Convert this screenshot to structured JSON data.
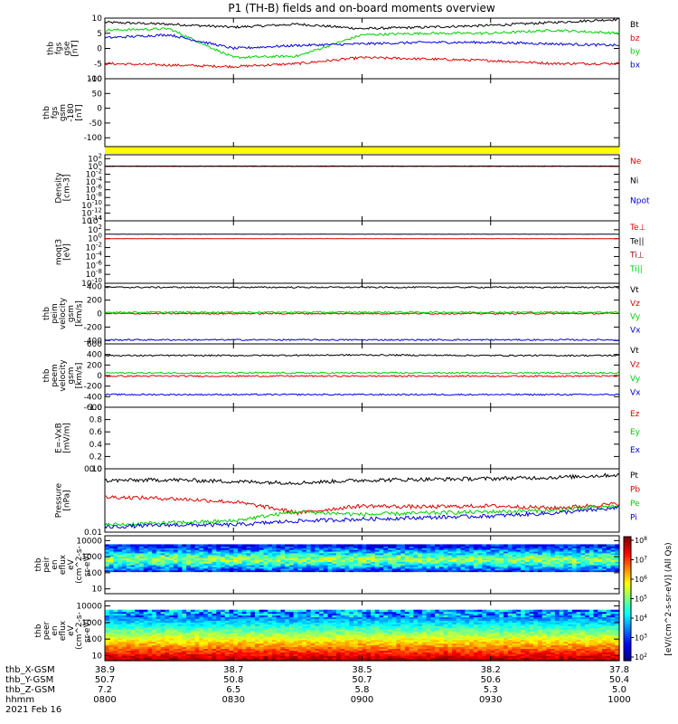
{
  "title": "P1 (TH-B) fields and on-board moments overview",
  "footer": {
    "date": "2021 Feb 16",
    "row_labels": [
      "thb_X-GSM",
      "thb_Y-GSM",
      "thb_Z-GSM",
      "hhmm"
    ],
    "columns": [
      {
        "x_gsm": "38.9",
        "y_gsm": "50.7",
        "z_gsm": "7.2",
        "hhmm": "0800"
      },
      {
        "x_gsm": "38.7",
        "y_gsm": "50.8",
        "z_gsm": "6.5",
        "hhmm": "0830"
      },
      {
        "x_gsm": "38.5",
        "y_gsm": "50.7",
        "z_gsm": "5.8",
        "hhmm": "0900"
      },
      {
        "x_gsm": "38.2",
        "y_gsm": "50.6",
        "z_gsm": "5.3",
        "hhmm": "0930"
      },
      {
        "x_gsm": "37.8",
        "y_gsm": "50.4",
        "z_gsm": "5.0",
        "hhmm": "1000"
      }
    ]
  },
  "colorbar": {
    "label": "[eV/(cm^2-s-sr-eV)] (All Qs)",
    "ticks": [
      "10^8",
      "10^7",
      "10^6",
      "10^5",
      "10^4",
      "10^3",
      "10^2"
    ]
  },
  "chart_data": [
    {
      "type": "line",
      "ylabel": [
        "thb",
        "fgs",
        "gse",
        "[nT]"
      ],
      "ylim": [
        -10,
        10
      ],
      "yticks": [
        "10",
        "5",
        "0",
        "-5",
        "-10"
      ],
      "series": [
        {
          "name": "Bt",
          "color": "#000000",
          "x": [
            0,
            15,
            30,
            45,
            60,
            75,
            90,
            105,
            120
          ],
          "values": [
            8.6,
            8.0,
            7.0,
            8.0,
            6.5,
            7.0,
            7.6,
            8.6,
            9.6
          ]
        },
        {
          "name": "bz",
          "color": "#e00000",
          "x": [
            0,
            15,
            30,
            45,
            60,
            75,
            90,
            105,
            120
          ],
          "values": [
            -5,
            -5.5,
            -6,
            -5,
            -3,
            -3.5,
            -4,
            -5,
            -5
          ]
        },
        {
          "name": "by",
          "color": "#00d000",
          "x": [
            0,
            15,
            30,
            45,
            60,
            75,
            90,
            105,
            120
          ],
          "values": [
            6,
            6.5,
            -3,
            -2.5,
            4.5,
            5,
            5,
            6,
            5
          ]
        },
        {
          "name": "bx",
          "color": "#0000e0",
          "x": [
            0,
            15,
            30,
            45,
            60,
            75,
            90,
            105,
            120
          ],
          "values": [
            3.5,
            4.5,
            0,
            1,
            1.5,
            2,
            2,
            1.5,
            1
          ]
        }
      ]
    },
    {
      "type": "line",
      "ylabel": [
        "thb",
        "fgs",
        "gsm",
        "-180",
        "[nT]"
      ],
      "ylim": [
        -130,
        100
      ],
      "yticks": [
        "100",
        "50",
        "0",
        "-50",
        "-100"
      ],
      "series": []
    },
    {
      "type": "line",
      "ylabel": [
        "Density",
        "[cm-3]"
      ],
      "yscale": "log",
      "ylim": [
        1e-14,
        1000
      ],
      "yticks": [
        "10^2",
        "10^0",
        "10^-2",
        "10^-4",
        "10^-6",
        "10^-8",
        "10^-10",
        "10^-12",
        "10^-14"
      ],
      "series": [
        {
          "name": "Ne",
          "color": "#e00000",
          "values": [
            1,
            1,
            1,
            1,
            1
          ]
        },
        {
          "name": "Ni",
          "color": "#000000",
          "values": [
            1.2,
            1.2,
            1.2,
            1.2,
            1.2
          ]
        },
        {
          "name": "Npot",
          "color": "#0000e0",
          "values": []
        }
      ]
    },
    {
      "type": "line",
      "ylabel": [
        "moqt3",
        "[eV]"
      ],
      "yscale": "log",
      "ylim": [
        1e-10,
        10000
      ],
      "yticks": [
        "10^4",
        "10^2",
        "10^0",
        "10^-2",
        "10^-4",
        "10^-6",
        "10^-8",
        "10^-10"
      ],
      "series": [
        {
          "name": "Te⊥",
          "color": "#e00000",
          "values": [
            1,
            1,
            1,
            1,
            1
          ]
        },
        {
          "name": "Te||",
          "color": "#000000",
          "values": [
            10,
            10,
            10,
            10,
            10
          ]
        },
        {
          "name": "Ti⊥",
          "color": "#a00000",
          "values": []
        },
        {
          "name": "Ti||",
          "color": "#00d000",
          "values": []
        }
      ]
    },
    {
      "type": "line",
      "ylabel": [
        "thb",
        "peim",
        "velocity",
        "gsm",
        "[km/s]"
      ],
      "ylim": [
        -450,
        450
      ],
      "yticks": [
        "400",
        "200",
        "0",
        "-200",
        "-400"
      ],
      "series": [
        {
          "name": "Vt",
          "color": "#000000",
          "values": [
            390,
            390,
            390,
            390,
            390
          ]
        },
        {
          "name": "Vz",
          "color": "#e00000",
          "values": [
            0,
            0,
            0,
            0,
            0
          ]
        },
        {
          "name": "Vy",
          "color": "#00d000",
          "values": [
            20,
            20,
            20,
            20,
            20
          ]
        },
        {
          "name": "Vx",
          "color": "#0000e0",
          "values": [
            -390,
            -390,
            -390,
            -390,
            -390
          ]
        }
      ]
    },
    {
      "type": "line",
      "ylabel": [
        "thb",
        "peem",
        "velocity",
        "gsm",
        "[km/s]"
      ],
      "ylim": [
        -600,
        600
      ],
      "yticks": [
        "600",
        "400",
        "200",
        "0",
        "-200",
        "-400",
        "-600"
      ],
      "series": [
        {
          "name": "Vt",
          "color": "#000000",
          "values": [
            380,
            380,
            390,
            380,
            380
          ]
        },
        {
          "name": "Vz",
          "color": "#e00000",
          "values": [
            -10,
            -10,
            -10,
            -10,
            -10
          ]
        },
        {
          "name": "Vy",
          "color": "#00d000",
          "values": [
            50,
            50,
            50,
            50,
            50
          ]
        },
        {
          "name": "Vx",
          "color": "#0000e0",
          "values": [
            -360,
            -360,
            -360,
            -360,
            -360
          ]
        }
      ]
    },
    {
      "type": "line",
      "ylabel": [
        "E=-VxB",
        "[mV/m]"
      ],
      "ylim": [
        0,
        1
      ],
      "yticks": [
        "1.0",
        "0.8",
        "0.6",
        "0.4",
        "0.2",
        "0.0"
      ],
      "series": [
        {
          "name": "Ez",
          "color": "#e00000",
          "values": []
        },
        {
          "name": "Ey",
          "color": "#00d000",
          "values": []
        },
        {
          "name": "Ex",
          "color": "#0000e0",
          "values": []
        }
      ]
    },
    {
      "type": "line",
      "ylabel": [
        "Pressure",
        "[nPa]"
      ],
      "yscale": "log",
      "ylim": [
        0.01,
        0.1
      ],
      "yticks": [
        "0.10",
        "0.01"
      ],
      "series": [
        {
          "name": "Pt",
          "color": "#000000",
          "x": [
            0,
            15,
            30,
            45,
            60,
            75,
            90,
            105,
            120
          ],
          "values": [
            0.065,
            0.067,
            0.063,
            0.06,
            0.066,
            0.068,
            0.07,
            0.073,
            0.08
          ]
        },
        {
          "name": "Pb",
          "color": "#e00000",
          "x": [
            0,
            15,
            30,
            45,
            60,
            75,
            90,
            105,
            120
          ],
          "values": [
            0.036,
            0.034,
            0.03,
            0.02,
            0.026,
            0.025,
            0.026,
            0.024,
            0.028
          ]
        },
        {
          "name": "Pe",
          "color": "#00d000",
          "x": [
            0,
            15,
            30,
            45,
            60,
            75,
            90,
            105,
            120
          ],
          "values": [
            0.013,
            0.014,
            0.015,
            0.021,
            0.019,
            0.02,
            0.021,
            0.022,
            0.026
          ]
        },
        {
          "name": "Pi",
          "color": "#0000e0",
          "x": [
            0,
            15,
            30,
            45,
            60,
            75,
            90,
            105,
            120
          ],
          "values": [
            0.012,
            0.013,
            0.013,
            0.015,
            0.016,
            0.017,
            0.018,
            0.02,
            0.024
          ]
        }
      ]
    },
    {
      "type": "heatmap",
      "ylabel": [
        "thb",
        "peir",
        "en",
        "eflux",
        "eV",
        "(cm^2-s-",
        "sr-eV)"
      ],
      "yscale": "log",
      "ylim": [
        5,
        20000
      ],
      "yticks": [
        "10000",
        "1000",
        "100",
        "10"
      ]
    },
    {
      "type": "heatmap",
      "ylabel": [
        "thb",
        "peer",
        "en",
        "eflux",
        "eV",
        "(cm^2-s-",
        "sr-eV)"
      ],
      "yscale": "log",
      "ylim": [
        5,
        20000
      ],
      "yticks": [
        "10000",
        "1000",
        "100",
        "10"
      ]
    }
  ]
}
